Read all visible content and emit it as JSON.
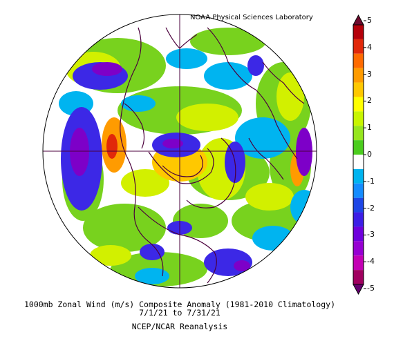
{
  "header": {
    "credit": "NOAA Physical Sciences Laboratory"
  },
  "caption": {
    "line1": "1000mb Zonal Wind (m/s) Composite Anomaly (1981-2010 Climatology)",
    "line2": "7/1/21 to 7/31/21",
    "line3": "NCEP/NCAR Reanalysis"
  },
  "colorbar": {
    "labels": [
      "5",
      "4",
      "3",
      "2",
      "1",
      "0",
      "-1",
      "-2",
      "-3",
      "-4",
      "-5"
    ],
    "colors": [
      "#6e0a2d",
      "#b4000a",
      "#e1280a",
      "#ff6a00",
      "#ff9b00",
      "#ffc800",
      "#ffff00",
      "#c8f500",
      "#96e61e",
      "#4bcd1e",
      "#ffffff",
      "#00b4f0",
      "#148cff",
      "#1e46e6",
      "#3c1ee6",
      "#6e00dc",
      "#9600d2",
      "#c300b4",
      "#a0005f",
      "#64006e"
    ]
  },
  "map": {
    "projection": "north-polar-stereographic",
    "palette": {
      "strong_neg": "#7d00c8",
      "neg": "#3c28e6",
      "weak_neg": "#00b4f0",
      "neutral": "#ffffff",
      "weak_pos": "#78d21e",
      "pos": "#d2f000",
      "strong_pos": "#ff9b00",
      "extreme_pos": "#e1280a",
      "coast": "#4b003c"
    }
  }
}
